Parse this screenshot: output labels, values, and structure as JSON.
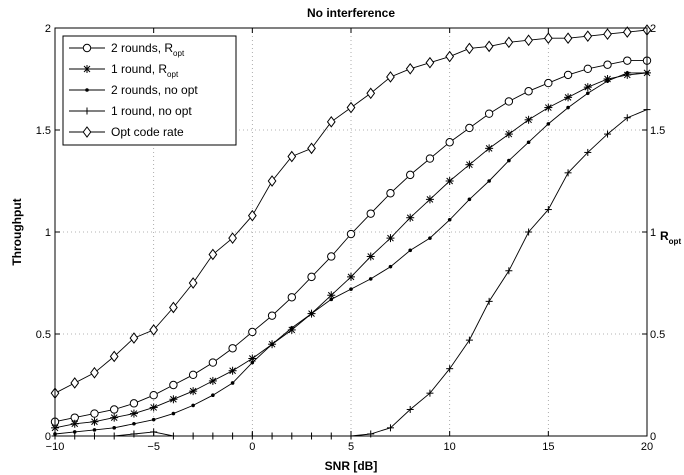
{
  "chart_data": {
    "type": "line",
    "title": "No interference",
    "xlabel": "SNR [dB]",
    "ylabel": "Throughput",
    "y2label": "R",
    "y2label_sub": "opt",
    "xlim": [
      -10,
      20
    ],
    "ylim": [
      0,
      2
    ],
    "y2lim": [
      0,
      2
    ],
    "xticks": [
      "−10",
      "−5",
      "0",
      "5",
      "10",
      "15",
      "20"
    ],
    "yticks": [
      "0",
      "0.5",
      "1",
      "1.5",
      "2"
    ],
    "y2ticks": [
      "0",
      "0.5",
      "1",
      "1.5",
      "2"
    ],
    "grid": true,
    "legend_position": "top-left",
    "x": [
      -10,
      -9,
      -8,
      -7,
      -6,
      -5,
      -4,
      -3,
      -2,
      -1,
      0,
      1,
      2,
      3,
      4,
      5,
      6,
      7,
      8,
      9,
      10,
      11,
      12,
      13,
      14,
      15,
      16,
      17,
      18,
      19,
      20
    ],
    "series": [
      {
        "name": "2 rounds, R",
        "name_sub": "opt",
        "marker": "circle",
        "values": [
          0.07,
          0.09,
          0.11,
          0.13,
          0.16,
          0.2,
          0.25,
          0.3,
          0.36,
          0.43,
          0.51,
          0.59,
          0.68,
          0.78,
          0.88,
          0.99,
          1.09,
          1.19,
          1.28,
          1.36,
          1.44,
          1.51,
          1.58,
          1.64,
          1.69,
          1.73,
          1.77,
          1.8,
          1.82,
          1.84,
          1.84
        ]
      },
      {
        "name": "1 round, R",
        "name_sub": "opt",
        "marker": "star",
        "values": [
          0.04,
          0.06,
          0.07,
          0.09,
          0.11,
          0.14,
          0.18,
          0.22,
          0.27,
          0.32,
          0.38,
          0.45,
          0.52,
          0.6,
          0.69,
          0.78,
          0.88,
          0.97,
          1.07,
          1.16,
          1.25,
          1.33,
          1.41,
          1.48,
          1.55,
          1.61,
          1.66,
          1.71,
          1.75,
          1.77,
          1.78
        ]
      },
      {
        "name": "2 rounds, no opt",
        "marker": "dot",
        "values": [
          0.01,
          0.02,
          0.03,
          0.04,
          0.06,
          0.08,
          0.11,
          0.15,
          0.2,
          0.26,
          0.36,
          0.45,
          0.53,
          0.6,
          0.67,
          0.72,
          0.77,
          0.83,
          0.91,
          0.97,
          1.06,
          1.16,
          1.25,
          1.35,
          1.44,
          1.53,
          1.61,
          1.68,
          1.74,
          1.78,
          1.78
        ]
      },
      {
        "name": "1 round, no opt",
        "marker": "plus",
        "values": [
          0,
          0,
          0,
          0,
          0.01,
          0.02,
          0,
          0,
          0,
          0,
          0,
          0,
          0,
          0,
          0,
          0,
          0.01,
          0.04,
          0.13,
          0.21,
          0.33,
          0.47,
          0.66,
          0.81,
          1.0,
          1.11,
          1.29,
          1.39,
          1.48,
          1.56,
          1.6
        ]
      },
      {
        "name": "Opt code rate",
        "marker": "diamond",
        "values": [
          0.21,
          0.26,
          0.31,
          0.39,
          0.48,
          0.52,
          0.63,
          0.75,
          0.89,
          0.97,
          1.08,
          1.25,
          1.37,
          1.41,
          1.54,
          1.61,
          1.68,
          1.76,
          1.8,
          1.83,
          1.86,
          1.9,
          1.91,
          1.93,
          1.94,
          1.95,
          1.95,
          1.96,
          1.97,
          1.98,
          1.99
        ]
      }
    ]
  }
}
